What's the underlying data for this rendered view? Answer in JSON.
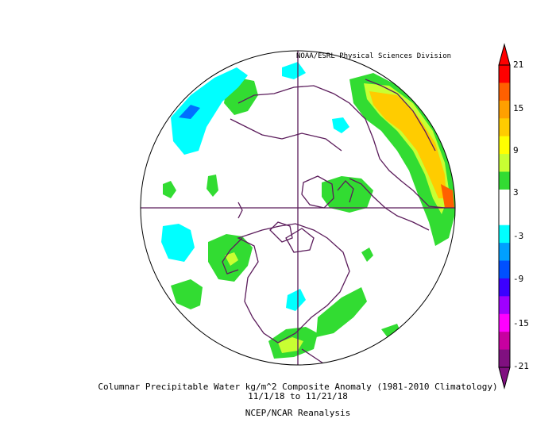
{
  "header": {
    "credit": "NOAA/ESRL Physical Sciences Division"
  },
  "caption": {
    "line1": "Columnar Precipitable Water kg/m^2 Composite Anomaly (1981-2010 Climatology)",
    "line2": "11/1/18  to 11/21/18",
    "line3": "NCEP/NCAR Reanalysis"
  },
  "colorbar": {
    "labels": [
      "21",
      "15",
      "9",
      "3",
      "-3",
      "-9",
      "-15",
      "-21"
    ],
    "colors": [
      "#ff0000",
      "#ff6000",
      "#ffa000",
      "#ffcc00",
      "#ffff00",
      "#c8ff32",
      "#32dc32",
      "#ffffff",
      "#ffffff",
      "#00ffff",
      "#00a0ff",
      "#0050ff",
      "#3c00ff",
      "#a000ff",
      "#ff00ff",
      "#c800a0",
      "#801080"
    ]
  },
  "map": {
    "projection": "north-polar-stereographic",
    "land_color": "#5b1c5b",
    "anomaly_colors": {
      "positive_small": "#32dc32",
      "positive_mid": "#c8ff32",
      "positive_high": "#ffcc00",
      "positive_peak": "#ff6000",
      "negative_small": "#00ffff",
      "negative_mid": "#0070ff"
    }
  }
}
